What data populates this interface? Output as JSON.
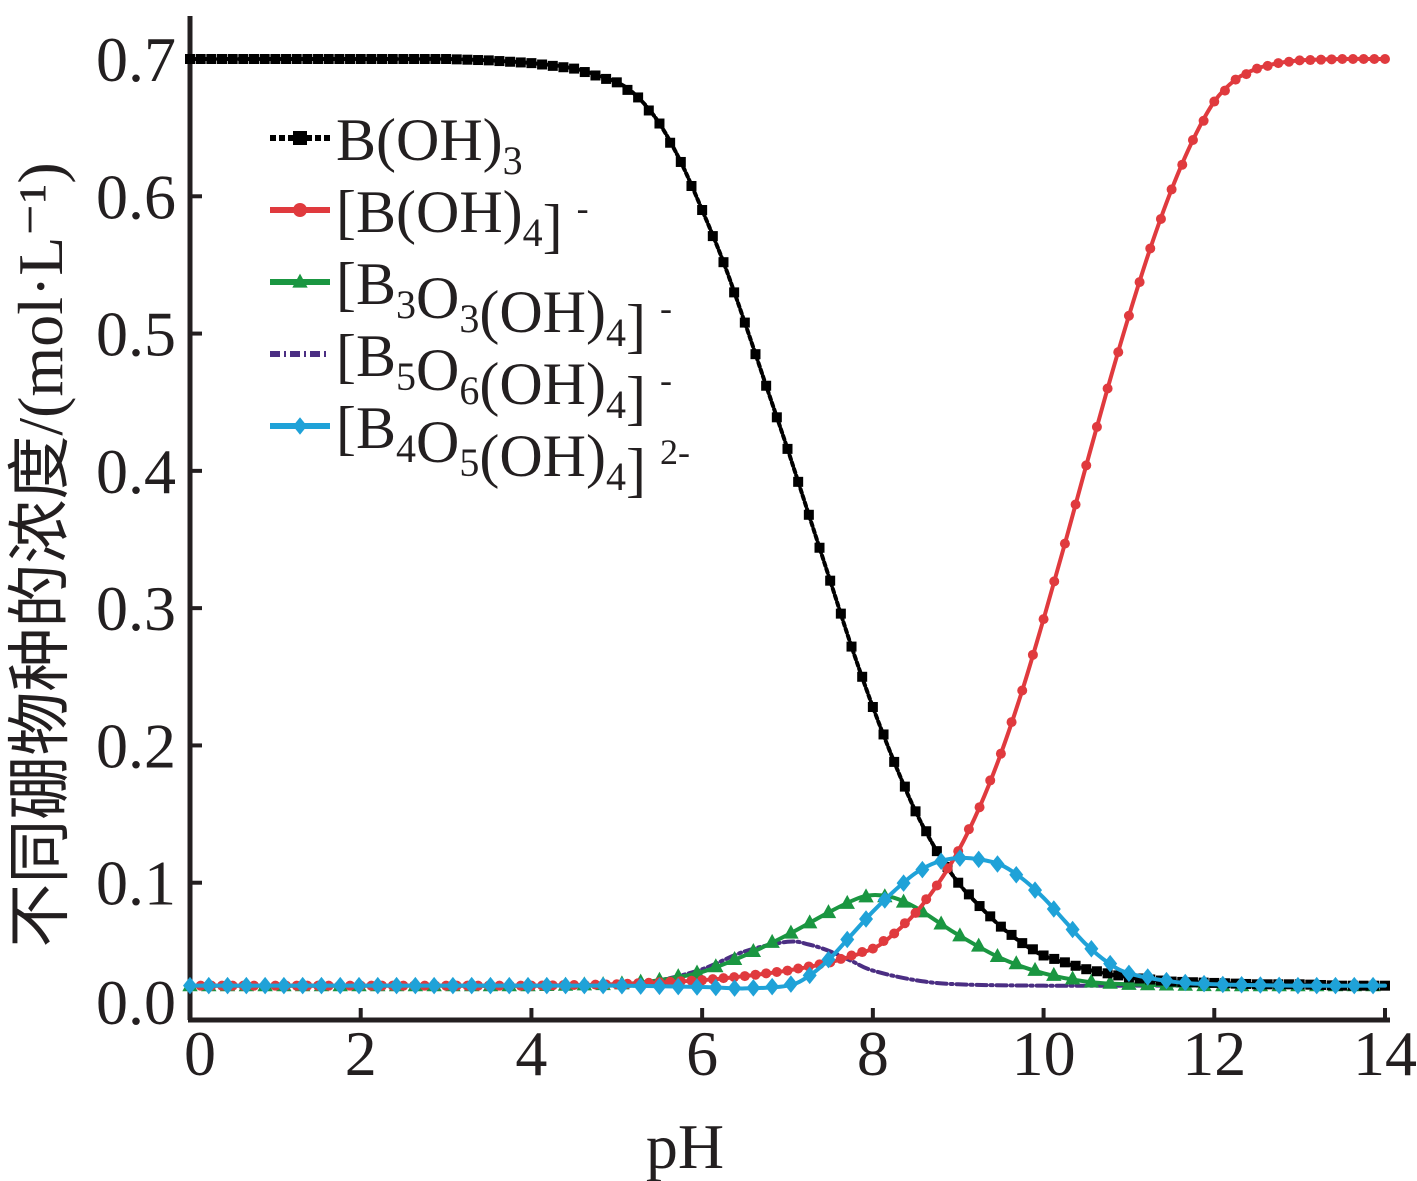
{
  "chart_data": {
    "type": "line",
    "xlabel": "pH",
    "ylabel": "不同硼物种的浓度/(mol·L⁻¹)",
    "xlim": [
      0,
      14
    ],
    "ylim": [
      0,
      0.7
    ],
    "x_ticks": [
      "0",
      "2",
      "4",
      "6",
      "8",
      "10",
      "12",
      "14"
    ],
    "y_ticks": [
      "0.0",
      "0.1",
      "0.2",
      "0.3",
      "0.4",
      "0.5",
      "0.6",
      "0.7"
    ],
    "grid": false,
    "legend_position": "top-left",
    "series": [
      {
        "name": "B(OH)3",
        "legend": {
          "main": "B(OH)",
          "sub": "3",
          "charge": ""
        },
        "color": "#000000",
        "marker": "square",
        "dash": "4 3",
        "x": [
          0,
          0.5,
          1,
          1.5,
          2,
          2.5,
          3,
          3.5,
          4,
          4.5,
          5,
          5.25,
          5.5,
          5.75,
          6,
          6.25,
          6.5,
          6.75,
          7,
          7.25,
          7.5,
          7.75,
          8,
          8.25,
          8.5,
          8.75,
          9,
          9.25,
          9.5,
          9.75,
          10,
          10.5,
          11,
          11.5,
          12,
          12.5,
          13,
          13.5,
          14
        ],
        "y": [
          0.7,
          0.7,
          0.7,
          0.7,
          0.7,
          0.7,
          0.7,
          0.699,
          0.697,
          0.693,
          0.683,
          0.672,
          0.653,
          0.625,
          0.59,
          0.552,
          0.508,
          0.462,
          0.416,
          0.368,
          0.32,
          0.272,
          0.228,
          0.188,
          0.152,
          0.123,
          0.1,
          0.083,
          0.068,
          0.056,
          0.047,
          0.037,
          0.031,
          0.028,
          0.027,
          0.026,
          0.026,
          0.025,
          0.025
        ]
      },
      {
        "name": "[B(OH)4]-",
        "legend": {
          "main": "B(OH)",
          "sub": "4",
          "charge": "-"
        },
        "color": "#e03a3e",
        "marker": "circle",
        "dash": "",
        "x": [
          0,
          1,
          2,
          3,
          4,
          5,
          6,
          6.5,
          7,
          7.5,
          8,
          8.25,
          8.5,
          8.75,
          9,
          9.25,
          9.5,
          9.75,
          10,
          10.25,
          10.5,
          10.75,
          11,
          11.25,
          11.5,
          11.75,
          12,
          12.25,
          12.5,
          12.75,
          13,
          13.5,
          14
        ],
        "y": [
          0.025,
          0.025,
          0.025,
          0.025,
          0.025,
          0.026,
          0.029,
          0.032,
          0.036,
          0.042,
          0.052,
          0.063,
          0.078,
          0.098,
          0.123,
          0.155,
          0.194,
          0.24,
          0.292,
          0.347,
          0.404,
          0.46,
          0.513,
          0.562,
          0.605,
          0.641,
          0.669,
          0.685,
          0.693,
          0.697,
          0.699,
          0.7,
          0.7
        ]
      },
      {
        "name": "[B3O3(OH)4]-",
        "legend": {
          "main": "B3O3(OH)",
          "sub": "4",
          "charge": "-"
        },
        "color": "#1a9641",
        "marker": "triangle",
        "dash": "",
        "x": [
          0,
          1,
          2,
          3,
          4,
          5,
          5.5,
          6,
          6.5,
          7,
          7.5,
          7.8,
          8,
          8.25,
          8.5,
          8.75,
          9,
          9.5,
          10,
          10.5,
          11,
          12,
          13,
          14
        ],
        "y": [
          0.025,
          0.025,
          0.025,
          0.025,
          0.025,
          0.026,
          0.029,
          0.035,
          0.047,
          0.062,
          0.079,
          0.088,
          0.091,
          0.089,
          0.082,
          0.072,
          0.062,
          0.045,
          0.034,
          0.028,
          0.026,
          0.025,
          0.025,
          0.025
        ]
      },
      {
        "name": "[B5O6(OH)4]-",
        "legend": {
          "main": "B5O6(OH)",
          "sub": "4",
          "charge": "-"
        },
        "color": "#4b2e83",
        "marker": "none",
        "dash": "10 4 2 4",
        "x": [
          0,
          1,
          2,
          3,
          4,
          5,
          5.5,
          6,
          6.5,
          7,
          7.25,
          7.5,
          7.75,
          8,
          8.5,
          9,
          10,
          11,
          12,
          13,
          14
        ],
        "y": [
          0.025,
          0.025,
          0.025,
          0.025,
          0.025,
          0.026,
          0.029,
          0.037,
          0.05,
          0.057,
          0.055,
          0.05,
          0.043,
          0.036,
          0.029,
          0.026,
          0.025,
          0.025,
          0.025,
          0.025,
          0.025
        ]
      },
      {
        "name": "[B4O5(OH)4]2-",
        "legend": {
          "main": "B4O5(OH)",
          "sub": "4",
          "charge": "2-"
        },
        "color": "#1fa2d8",
        "marker": "diamond",
        "dash": "",
        "x": [
          0,
          1,
          2,
          3,
          4,
          5,
          6,
          6.5,
          7,
          7.25,
          7.5,
          7.75,
          8,
          8.25,
          8.5,
          8.75,
          9,
          9.25,
          9.5,
          9.75,
          10,
          10.25,
          10.5,
          10.75,
          11,
          11.5,
          12,
          13,
          14
        ],
        "y": [
          0.025,
          0.025,
          0.025,
          0.025,
          0.025,
          0.025,
          0.024,
          0.023,
          0.025,
          0.032,
          0.045,
          0.062,
          0.079,
          0.094,
          0.107,
          0.115,
          0.118,
          0.117,
          0.113,
          0.103,
          0.089,
          0.072,
          0.055,
          0.042,
          0.034,
          0.028,
          0.026,
          0.025,
          0.025
        ]
      }
    ]
  }
}
